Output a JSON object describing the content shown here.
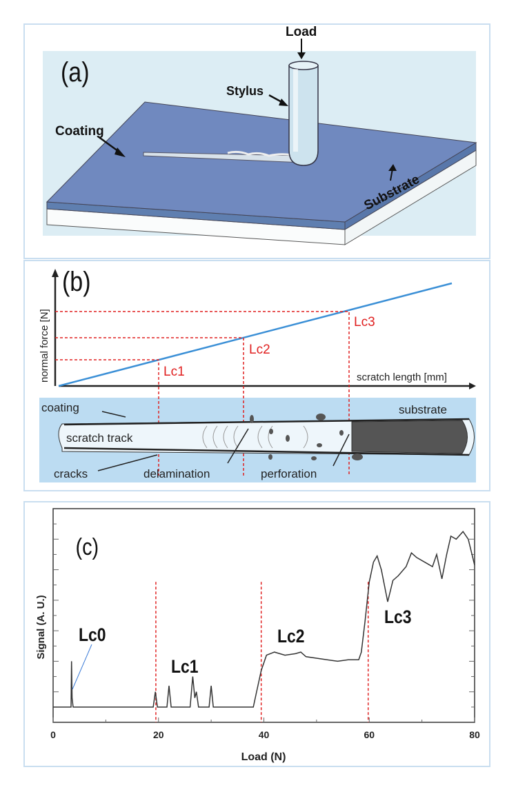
{
  "panel_a": {
    "tag": "(a)",
    "load": "Load",
    "stylus": "Stylus",
    "coating": "Coating",
    "substrate": "Substrate"
  },
  "panel_b": {
    "tag": "(b)",
    "ylabel": "normal force [N]",
    "xlabel": "scratch length  [mm]",
    "critical_loads": [
      "Lc1",
      "Lc2",
      "Lc3"
    ],
    "track_labels": {
      "coating": "coating",
      "scratch_track": "scratch track",
      "substrate": "substrate",
      "cracks": "cracks",
      "delamination": "delamination",
      "perforation": "perforation"
    },
    "colors": {
      "force_line": "#3a8fd6",
      "critical": "#e02020",
      "track_bg": "#bcdcf2"
    }
  },
  "chart_data": {
    "type": "line",
    "tag": "(c)",
    "xlabel": "Load (N)",
    "ylabel": "Signal (A. U.)",
    "xlim": [
      0,
      80
    ],
    "ylim": [
      0,
      14
    ],
    "xticks": [
      "0",
      "20",
      "40",
      "60",
      "80"
    ],
    "grid": false,
    "series": [
      {
        "x": [
          0,
          3.4,
          3.5,
          3.6,
          3.8,
          19,
          19.4,
          19.8,
          21.6,
          22,
          22.4,
          26,
          26.5,
          26.9,
          27.2,
          27.6,
          29.6,
          30,
          30.4,
          38,
          38.5,
          39.5,
          40.5,
          42,
          44,
          46,
          47,
          48,
          50,
          52,
          54,
          56,
          58,
          58.5,
          59.2,
          60,
          60.8,
          61.5,
          62.3,
          63.5,
          64.5,
          65.5,
          67,
          68,
          69,
          71,
          72,
          72.8,
          73.8,
          74.7,
          75.5,
          76.5,
          77.8,
          78.8,
          80
        ],
        "y": [
          1,
          1,
          4.0,
          1.6,
          1,
          1,
          2.0,
          1,
          1,
          2.4,
          1,
          1,
          3.0,
          1.6,
          2.0,
          1,
          1,
          2.4,
          1,
          1,
          1.8,
          3.4,
          4.4,
          4.6,
          4.4,
          4.5,
          4.6,
          4.3,
          4.2,
          4.1,
          4.0,
          4.1,
          4.1,
          4.6,
          6.6,
          9.2,
          10.5,
          10.9,
          10.0,
          7.9,
          9.3,
          9.6,
          10.2,
          11.1,
          10.8,
          10.4,
          10.2,
          11.0,
          9.4,
          11.0,
          12.2,
          12.0,
          12.5,
          12.0,
          10.3
        ]
      }
    ],
    "annotations": [
      "Lc0",
      "Lc1",
      "Lc2",
      "Lc3"
    ],
    "critical_load_lines": [
      19.5,
      39.5,
      59.8
    ],
    "colors": {
      "signal": "#333333",
      "critical": "#e02020",
      "lc0_pointer": "#3a7ad6"
    }
  }
}
